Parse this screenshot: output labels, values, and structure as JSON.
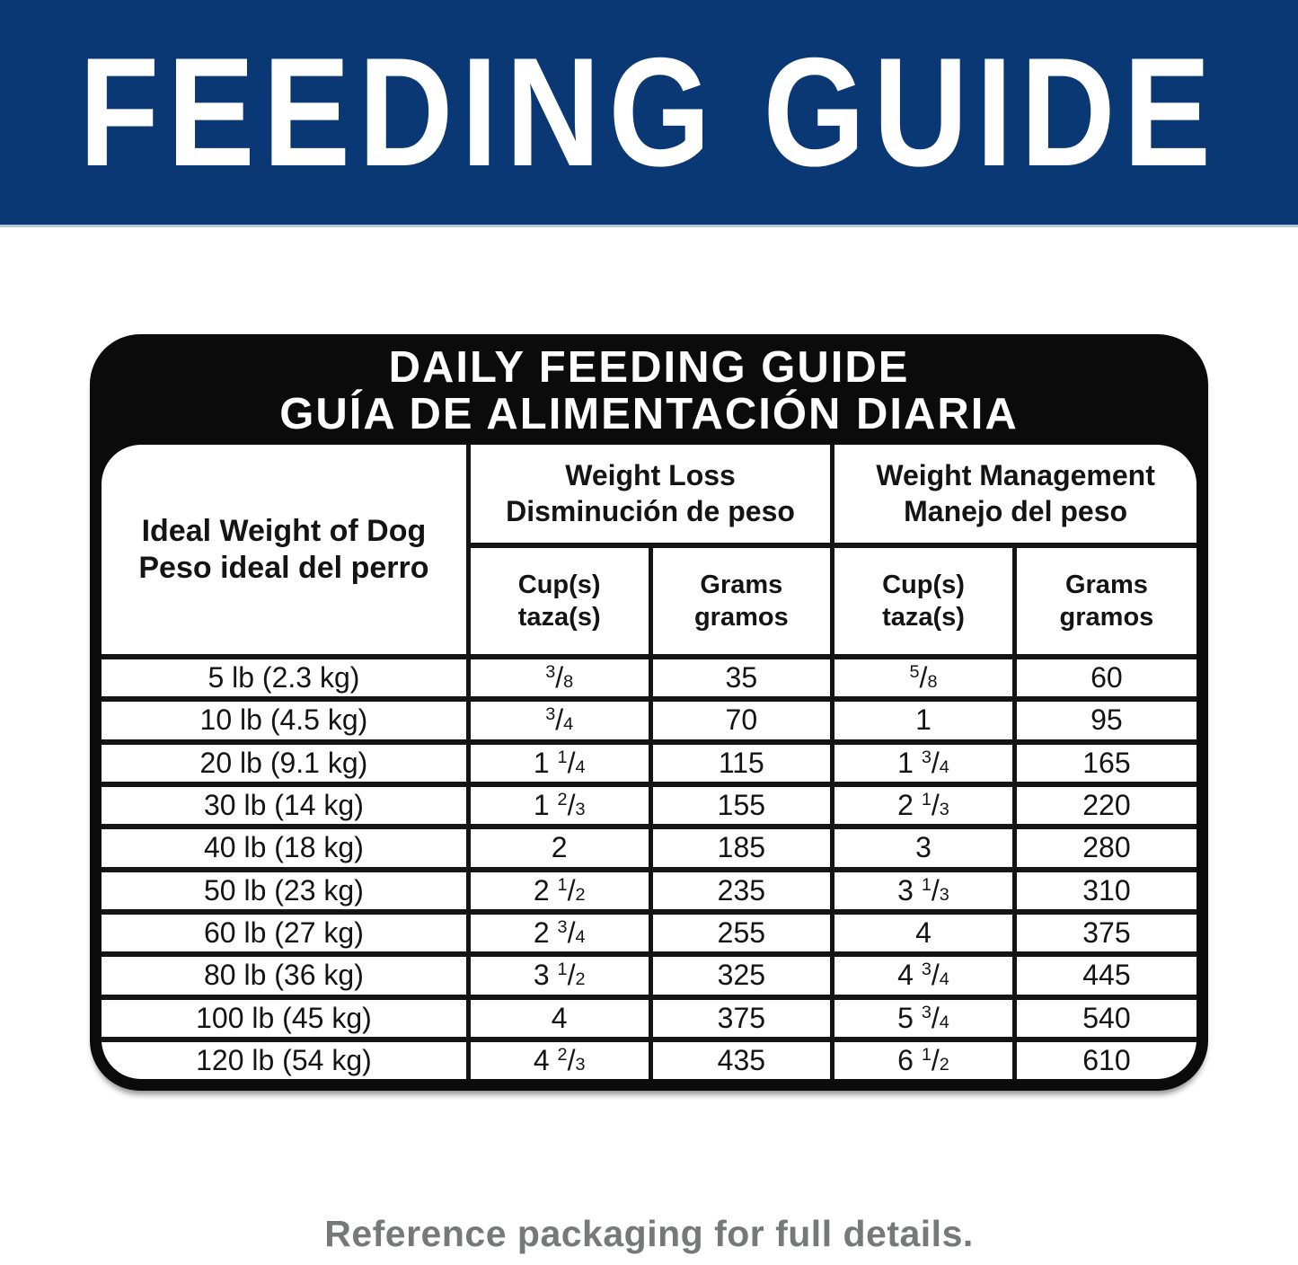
{
  "banner": {
    "title": "FEEDING GUIDE"
  },
  "card": {
    "title": "DAILY FEEDING GUIDE",
    "subtitle": "GUÍA DE ALIMENTACIÓN DIARIA"
  },
  "footer": {
    "note": "Reference packaging for full details."
  },
  "colors": {
    "banner_blue": "#0a3875",
    "card_black": "#0b0b0b",
    "footer_gray": "#77787a",
    "line_black": "#141414"
  },
  "chart_data": {
    "type": "table",
    "title": "DAILY FEEDING GUIDE",
    "subtitle": "GUÍA DE ALIMENTACIÓN DIARIA",
    "row_header": {
      "line1": "Ideal Weight of Dog",
      "line2": "Peso ideal del perro"
    },
    "column_groups": [
      {
        "line1": "Weight Loss",
        "line2": "Disminución de peso"
      },
      {
        "line1": "Weight Management",
        "line2": "Manejo del peso"
      }
    ],
    "subcolumns": [
      {
        "line1": "Cup(s)",
        "line2": "taza(s)"
      },
      {
        "line1": "Grams",
        "line2": "gramos"
      },
      {
        "line1": "Cup(s)",
        "line2": "taza(s)"
      },
      {
        "line1": "Grams",
        "line2": "gramos"
      }
    ],
    "rows": [
      {
        "weight": "5 lb (2.3 kg)",
        "weight_loss_cups": "3/8",
        "weight_loss_grams": "35",
        "weight_management_cups": "5/8",
        "weight_management_grams": "60"
      },
      {
        "weight": "10 lb (4.5 kg)",
        "weight_loss_cups": "3/4",
        "weight_loss_grams": "70",
        "weight_management_cups": "1",
        "weight_management_grams": "95"
      },
      {
        "weight": "20 lb (9.1 kg)",
        "weight_loss_cups": "1 1/4",
        "weight_loss_grams": "115",
        "weight_management_cups": "1 3/4",
        "weight_management_grams": "165"
      },
      {
        "weight": "30 lb (14 kg)",
        "weight_loss_cups": "1 2/3",
        "weight_loss_grams": "155",
        "weight_management_cups": "2 1/3",
        "weight_management_grams": "220"
      },
      {
        "weight": "40 lb (18 kg)",
        "weight_loss_cups": "2",
        "weight_loss_grams": "185",
        "weight_management_cups": "3",
        "weight_management_grams": "280"
      },
      {
        "weight": "50 lb (23 kg)",
        "weight_loss_cups": "2 1/2",
        "weight_loss_grams": "235",
        "weight_management_cups": "3 1/3",
        "weight_management_grams": "310"
      },
      {
        "weight": "60 lb (27 kg)",
        "weight_loss_cups": "2 3/4",
        "weight_loss_grams": "255",
        "weight_management_cups": "4",
        "weight_management_grams": "375"
      },
      {
        "weight": "80 lb (36 kg)",
        "weight_loss_cups": "3 1/2",
        "weight_loss_grams": "325",
        "weight_management_cups": "4 3/4",
        "weight_management_grams": "445"
      },
      {
        "weight": "100 lb (45 kg)",
        "weight_loss_cups": "4",
        "weight_loss_grams": "375",
        "weight_management_cups": "5 3/4",
        "weight_management_grams": "540"
      },
      {
        "weight": "120 lb (54 kg)",
        "weight_loss_cups": "4 2/3",
        "weight_loss_grams": "435",
        "weight_management_cups": "6 1/2",
        "weight_management_grams": "610"
      }
    ]
  }
}
